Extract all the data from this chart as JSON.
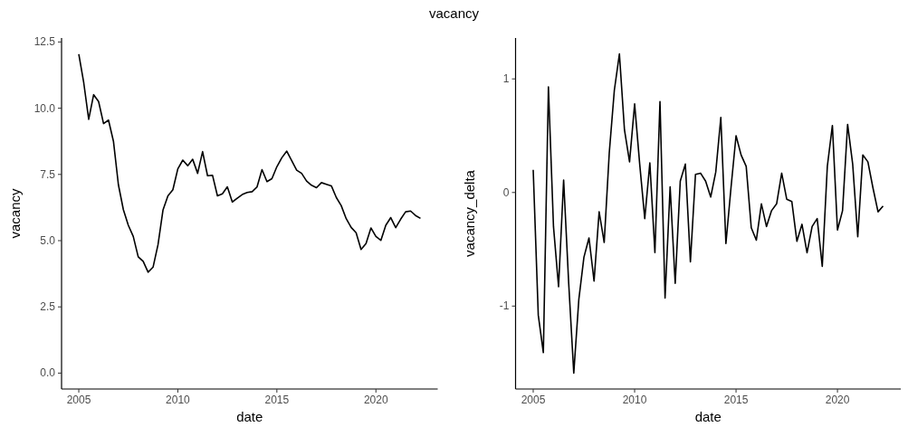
{
  "chart_data": [
    {
      "type": "line",
      "title": "vacancy",
      "xlabel": "date",
      "ylabel": "vacancy",
      "xlim": [
        2004.13,
        2023.12
      ],
      "xticks": [
        2005,
        2010,
        2015,
        2020
      ],
      "ylim": [
        -0.6,
        12.65
      ],
      "yticks": [
        {
          "value": 0,
          "label": "0.0"
        },
        {
          "value": 2.5,
          "label": "2.5"
        },
        {
          "value": 5,
          "label": "5.0"
        },
        {
          "value": 7.5,
          "label": "7.5"
        },
        {
          "value": 10,
          "label": "10.0"
        },
        {
          "value": 12.5,
          "label": "12.5"
        }
      ],
      "grid": false,
      "x": [
        2005,
        2005.25,
        2005.5,
        2005.75,
        2006,
        2006.25,
        2006.5,
        2006.75,
        2007,
        2007.25,
        2007.5,
        2007.75,
        2008,
        2008.25,
        2008.5,
        2008.75,
        2009,
        2009.25,
        2009.5,
        2009.75,
        2010,
        2010.25,
        2010.5,
        2010.75,
        2011,
        2011.25,
        2011.5,
        2011.75,
        2012,
        2012.25,
        2012.5,
        2012.75,
        2013,
        2013.25,
        2013.5,
        2013.75,
        2014,
        2014.25,
        2014.5,
        2014.75,
        2015,
        2015.25,
        2015.5,
        2015.75,
        2016,
        2016.25,
        2016.5,
        2016.75,
        2017,
        2017.25,
        2017.5,
        2017.75,
        2018,
        2018.25,
        2018.5,
        2018.75,
        2019,
        2019.25,
        2019.5,
        2019.75,
        2020,
        2020.25,
        2020.5,
        2020.75,
        2021,
        2021.25,
        2021.5,
        2021.75,
        2022,
        2022.25
      ],
      "series": [
        {
          "color": "#000000",
          "values": [
            12.04,
            10.96,
            9.58,
            10.51,
            10.25,
            9.42,
            9.55,
            8.75,
            7.11,
            6.17,
            5.58,
            5.16,
            4.39,
            4.22,
            3.81,
            4.0,
            4.85,
            6.15,
            6.69,
            6.92,
            7.71,
            8.04,
            7.83,
            8.07,
            7.54,
            8.36,
            7.45,
            7.47,
            6.69,
            6.77,
            7.03,
            6.46,
            6.6,
            6.74,
            6.82,
            6.85,
            7.03,
            7.68,
            7.23,
            7.34,
            7.79,
            8.13,
            8.38,
            8.02,
            7.66,
            7.54,
            7.25,
            7.09,
            7.0,
            7.19,
            7.13,
            7.07,
            6.63,
            6.32,
            5.83,
            5.5,
            5.3,
            4.67,
            4.89,
            5.48,
            5.16,
            5.01,
            5.58,
            5.87,
            5.49,
            5.81,
            6.09,
            6.12,
            5.95,
            5.84
          ]
        }
      ]
    },
    {
      "type": "line",
      "xlabel": "date",
      "ylabel": "vacancy_delta",
      "xlim": [
        2004.13,
        2023.12
      ],
      "xticks": [
        2005,
        2010,
        2015,
        2020
      ],
      "ylim": [
        -1.73,
        1.36
      ],
      "yticks": [
        {
          "value": -1,
          "label": "-1"
        },
        0,
        1
      ],
      "grid": false,
      "x": [
        2005,
        2005.25,
        2005.5,
        2005.75,
        2006,
        2006.25,
        2006.5,
        2006.75,
        2007,
        2007.25,
        2007.5,
        2007.75,
        2008,
        2008.25,
        2008.5,
        2008.75,
        2009,
        2009.25,
        2009.5,
        2009.75,
        2010,
        2010.25,
        2010.5,
        2010.75,
        2011,
        2011.25,
        2011.5,
        2011.75,
        2012,
        2012.25,
        2012.5,
        2012.75,
        2013,
        2013.25,
        2013.5,
        2013.75,
        2014,
        2014.25,
        2014.5,
        2014.75,
        2015,
        2015.25,
        2015.5,
        2015.75,
        2016,
        2016.25,
        2016.5,
        2016.75,
        2017,
        2017.25,
        2017.5,
        2017.75,
        2018,
        2018.25,
        2018.5,
        2018.75,
        2019,
        2019.25,
        2019.5,
        2019.75,
        2020,
        2020.25,
        2020.5,
        2020.75,
        2021,
        2021.25,
        2021.5,
        2021.75,
        2022,
        2022.25
      ],
      "series": [
        {
          "color": "#000000",
          "values": [
            0.2,
            -1.08,
            -1.41,
            0.93,
            -0.3,
            -0.83,
            0.11,
            -0.8,
            -1.59,
            -0.94,
            -0.57,
            -0.4,
            -0.78,
            -0.17,
            -0.44,
            0.35,
            0.9,
            1.22,
            0.55,
            0.27,
            0.78,
            0.25,
            -0.23,
            0.26,
            -0.53,
            0.8,
            -0.93,
            0.05,
            -0.8,
            0.1,
            0.25,
            -0.61,
            0.16,
            0.17,
            0.1,
            -0.04,
            0.18,
            0.66,
            -0.45,
            0.04,
            0.5,
            0.33,
            0.23,
            -0.31,
            -0.42,
            -0.1,
            -0.3,
            -0.16,
            -0.1,
            0.17,
            -0.06,
            -0.08,
            -0.43,
            -0.28,
            -0.53,
            -0.3,
            -0.23,
            -0.65,
            0.23,
            0.59,
            -0.33,
            -0.16,
            0.6,
            0.25,
            -0.39,
            0.33,
            0.27,
            0.04,
            -0.17,
            -0.12
          ]
        }
      ]
    }
  ]
}
